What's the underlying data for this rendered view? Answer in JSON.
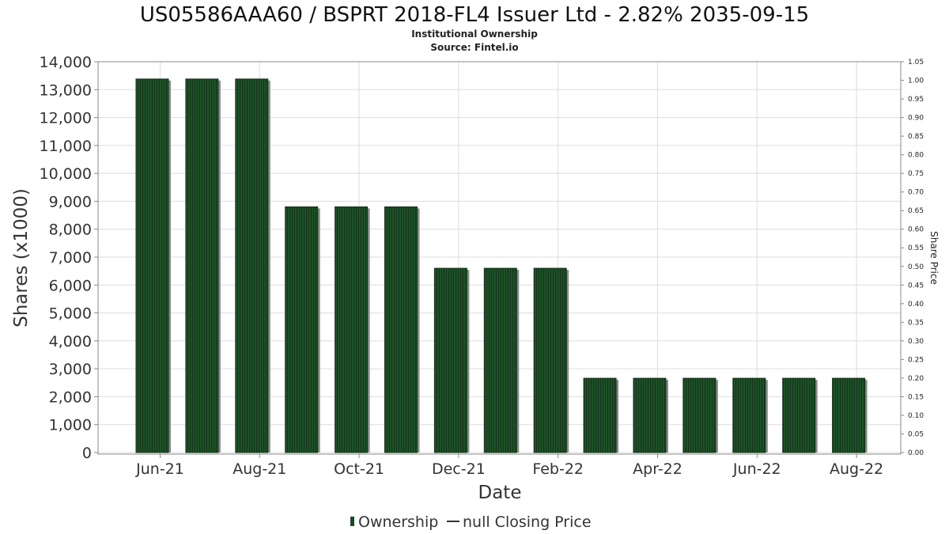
{
  "chart_data": {
    "type": "bar",
    "title": "US05586AAA60 / BSPRT 2018-FL4 Issuer Ltd - 2.82% 2035-09-15",
    "subtitle_line1": "Institutional Ownership",
    "subtitle_line2": "Source: Fintel.io",
    "xlabel": "Date",
    "ylabel": "Shares (x1000)",
    "y2label": "Share Price",
    "ylim": [
      0,
      14000
    ],
    "y2lim": [
      0,
      1.05
    ],
    "yticks": [
      "0",
      "1,000",
      "2,000",
      "3,000",
      "4,000",
      "5,000",
      "6,000",
      "7,000",
      "8,000",
      "9,000",
      "10,000",
      "11,000",
      "12,000",
      "13,000",
      "14,000"
    ],
    "y2ticks": [
      "0.00",
      "0.05",
      "0.10",
      "0.15",
      "0.20",
      "0.25",
      "0.30",
      "0.35",
      "0.40",
      "0.45",
      "0.50",
      "0.55",
      "0.60",
      "0.65",
      "0.70",
      "0.75",
      "0.80",
      "0.85",
      "0.90",
      "0.95",
      "1.00",
      "1.05"
    ],
    "xticks": [
      "Jun-21",
      "Aug-21",
      "Oct-21",
      "Dec-21",
      "Feb-22",
      "Apr-22",
      "Jun-22",
      "Aug-22"
    ],
    "categories": [
      "2021-06",
      "2021-07",
      "2021-08",
      "2021-09",
      "2021-10",
      "2021-11",
      "2021-12",
      "2022-01",
      "2022-02",
      "2022-03",
      "2022-04",
      "2022-05",
      "2022-06",
      "2022-07",
      "2022-08"
    ],
    "series": [
      {
        "name": "Ownership",
        "values": [
          13380,
          13380,
          13380,
          8800,
          8800,
          8800,
          6600,
          6600,
          6600,
          2660,
          2660,
          2660,
          2660,
          2660,
          2660
        ]
      }
    ],
    "legend": [
      "Ownership",
      "null Closing Price"
    ],
    "legend_position": "bottom-center",
    "grid": true,
    "colors": {
      "bar": "#1b4a24",
      "bar_dark": "#123218",
      "shadow": "#8a8a8a",
      "grid": "#dddddd",
      "axis": "#888888"
    }
  }
}
